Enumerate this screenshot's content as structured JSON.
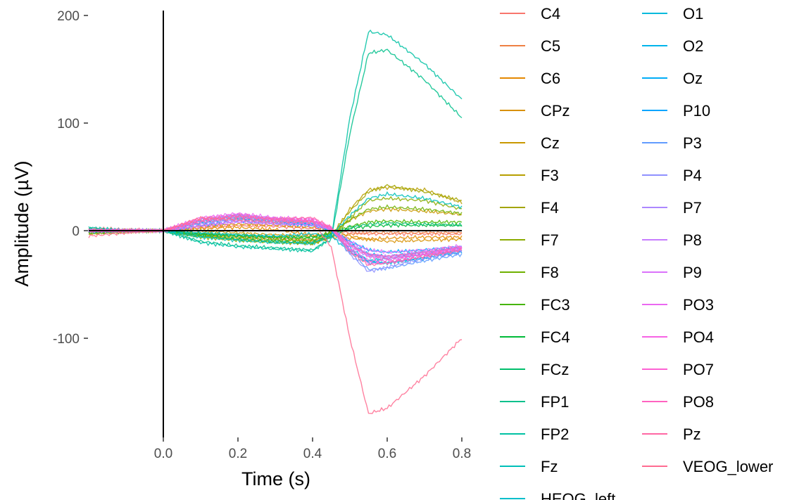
{
  "chart_data": {
    "type": "line",
    "title": "",
    "xlabel": "Time (s)",
    "ylabel": "Amplitude (µV)",
    "xlim": [
      -0.25,
      0.8
    ],
    "ylim": [
      -190,
      205
    ],
    "x_ticks": [
      0.0,
      0.2,
      0.4,
      0.6,
      0.8
    ],
    "x_tick_labels": [
      "0.0",
      "0.2",
      "0.4",
      "0.6",
      "0.8"
    ],
    "y_ticks": [
      200,
      100,
      0,
      -100
    ],
    "y_tick_labels": [
      "200",
      "100",
      "0",
      "-100"
    ],
    "grid": false,
    "legend_position": "right",
    "x": [
      -0.2,
      -0.1,
      0.0,
      0.1,
      0.2,
      0.3,
      0.4,
      0.45,
      0.5,
      0.55,
      0.6,
      0.7,
      0.8
    ],
    "series": [
      {
        "name": "C4",
        "color": "#F8766D",
        "values": [
          2,
          1,
          0,
          3,
          5,
          4,
          2,
          0,
          -2,
          -3,
          -3,
          -3,
          -3
        ]
      },
      {
        "name": "C5",
        "color": "#EE8043",
        "values": [
          -2,
          0,
          0,
          -3,
          -5,
          -7,
          -9,
          -6,
          -3,
          -2,
          -2,
          -2,
          -2
        ]
      },
      {
        "name": "C6",
        "color": "#E48800",
        "values": [
          1,
          0,
          0,
          2,
          3,
          1,
          -4,
          -6,
          -7,
          -8,
          -7,
          -6,
          -6
        ]
      },
      {
        "name": "CPz",
        "color": "#D89000",
        "values": [
          1,
          0,
          0,
          4,
          6,
          5,
          3,
          0,
          -5,
          -8,
          -10,
          -9,
          -8
        ]
      },
      {
        "name": "Cz",
        "color": "#C99800",
        "values": [
          -1,
          0,
          0,
          0,
          -2,
          -4,
          -5,
          -2,
          10,
          18,
          20,
          18,
          15
        ]
      },
      {
        "name": "F3",
        "color": "#B79F00",
        "values": [
          -3,
          -1,
          0,
          -4,
          -8,
          -10,
          -12,
          -6,
          20,
          38,
          40,
          38,
          26
        ]
      },
      {
        "name": "F4",
        "color": "#A3A500",
        "values": [
          -2,
          -1,
          0,
          -5,
          -7,
          -9,
          -10,
          -4,
          18,
          36,
          42,
          36,
          28
        ]
      },
      {
        "name": "F7",
        "color": "#8BAB00",
        "values": [
          -2,
          -1,
          0,
          -6,
          -9,
          -11,
          -12,
          -6,
          12,
          28,
          30,
          28,
          20
        ]
      },
      {
        "name": "F8",
        "color": "#6FB000",
        "values": [
          -1,
          0,
          0,
          -4,
          -6,
          -8,
          -9,
          -4,
          10,
          20,
          22,
          20,
          16
        ]
      },
      {
        "name": "FC3",
        "color": "#45B500",
        "values": [
          -2,
          -1,
          0,
          -3,
          -5,
          -6,
          -7,
          -2,
          4,
          8,
          9,
          8,
          8
        ]
      },
      {
        "name": "FC4",
        "color": "#00BA38",
        "values": [
          -1,
          0,
          0,
          -3,
          -4,
          -6,
          -6,
          -3,
          2,
          4,
          5,
          5,
          5
        ]
      },
      {
        "name": "FCz",
        "color": "#00BE6C",
        "values": [
          -1,
          0,
          0,
          -5,
          -8,
          -10,
          -11,
          -5,
          3,
          6,
          7,
          6,
          5
        ]
      },
      {
        "name": "FP1",
        "color": "#00C08B",
        "values": [
          2,
          0,
          0,
          -10,
          -14,
          -16,
          -18,
          -8,
          90,
          165,
          168,
          140,
          105
        ]
      },
      {
        "name": "FP2",
        "color": "#00C1A3",
        "values": [
          3,
          0,
          0,
          -11,
          -15,
          -17,
          -19,
          -6,
          105,
          185,
          182,
          155,
          122
        ]
      },
      {
        "name": "Fz",
        "color": "#00C0B8",
        "values": [
          -1,
          0,
          0,
          -6,
          -9,
          -11,
          -12,
          -4,
          14,
          30,
          34,
          30,
          22
        ]
      },
      {
        "name": "HEOG_left",
        "color": "#00BECB",
        "values": [
          0,
          0,
          0,
          -2,
          -4,
          -5,
          -3,
          -5,
          -20,
          -28,
          -26,
          -22,
          -20
        ]
      },
      {
        "name": "O1",
        "color": "#00BADC",
        "values": [
          0,
          0,
          0,
          8,
          12,
          8,
          6,
          0,
          -18,
          -30,
          -30,
          -25,
          -18
        ]
      },
      {
        "name": "O2",
        "color": "#00B4EB",
        "values": [
          0,
          0,
          0,
          9,
          13,
          9,
          7,
          0,
          -16,
          -28,
          -30,
          -26,
          -20
        ]
      },
      {
        "name": "Oz",
        "color": "#00ADF7",
        "values": [
          0,
          0,
          0,
          7,
          11,
          8,
          6,
          2,
          -12,
          -22,
          -24,
          -20,
          -16
        ]
      },
      {
        "name": "P10",
        "color": "#00A5FF",
        "values": [
          0,
          0,
          0,
          5,
          9,
          7,
          5,
          1,
          -10,
          -18,
          -20,
          -18,
          -15
        ]
      },
      {
        "name": "P3",
        "color": "#619CFF",
        "values": [
          0,
          0,
          0,
          10,
          14,
          10,
          9,
          2,
          -20,
          -36,
          -35,
          -28,
          -22
        ]
      },
      {
        "name": "P4",
        "color": "#8F91FF",
        "values": [
          0,
          0,
          0,
          9,
          15,
          11,
          9,
          2,
          -22,
          -38,
          -34,
          -26,
          -20
        ]
      },
      {
        "name": "P7",
        "color": "#AC88FF",
        "values": [
          0,
          0,
          0,
          6,
          10,
          8,
          7,
          1,
          -14,
          -24,
          -26,
          -22,
          -18
        ]
      },
      {
        "name": "P8",
        "color": "#C77CFF",
        "values": [
          0,
          0,
          0,
          5,
          9,
          7,
          6,
          1,
          -12,
          -22,
          -24,
          -20,
          -16
        ]
      },
      {
        "name": "P9",
        "color": "#DB72FB",
        "values": [
          0,
          0,
          0,
          4,
          8,
          6,
          5,
          1,
          -10,
          -18,
          -20,
          -18,
          -14
        ]
      },
      {
        "name": "PO3",
        "color": "#EA68F1",
        "values": [
          0,
          0,
          0,
          12,
          16,
          12,
          11,
          3,
          -18,
          -30,
          -30,
          -24,
          -18
        ]
      },
      {
        "name": "PO4",
        "color": "#F663E4",
        "values": [
          0,
          0,
          0,
          11,
          15,
          11,
          10,
          2,
          -17,
          -28,
          -28,
          -22,
          -16
        ]
      },
      {
        "name": "PO7",
        "color": "#FD61D3",
        "values": [
          0,
          0,
          0,
          9,
          13,
          10,
          9,
          2,
          -14,
          -24,
          -26,
          -22,
          -17
        ]
      },
      {
        "name": "PO8",
        "color": "#FF63C0",
        "values": [
          0,
          0,
          0,
          8,
          12,
          10,
          9,
          1,
          -13,
          -22,
          -24,
          -20,
          -15
        ]
      },
      {
        "name": "Pz",
        "color": "#FF67A4",
        "values": [
          0,
          0,
          0,
          10,
          14,
          11,
          12,
          3,
          -20,
          -32,
          -30,
          -24,
          -18
        ]
      },
      {
        "name": "VEOG_lower",
        "color": "#FF6C91",
        "values": [
          -5,
          -2,
          0,
          12,
          10,
          8,
          8,
          -15,
          -100,
          -170,
          -165,
          -135,
          -100
        ]
      }
    ]
  }
}
